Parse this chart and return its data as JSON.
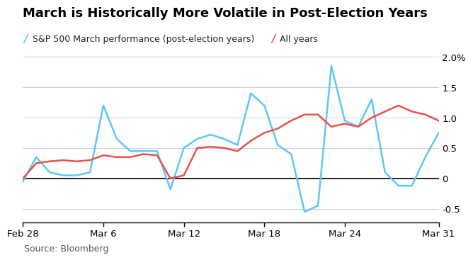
{
  "title": "March is Historically More Volatile in Post-Election Years",
  "legend_blue": "S&P 500 March performance (post-election years)",
  "legend_red": "All years",
  "source": "Source: Bloomberg",
  "x_labels": [
    "Feb 28",
    "Mar 6",
    "Mar 12",
    "Mar 18",
    "Mar 24",
    "Mar 31"
  ],
  "x_positions": [
    0,
    6,
    12,
    18,
    24,
    31
  ],
  "ylim": [
    -0.72,
    2.15
  ],
  "yticks": [
    -0.5,
    0,
    0.5,
    1.0,
    1.5,
    2.0
  ],
  "ytick_labels": [
    "-0.5",
    "0",
    "0.5",
    "1.0",
    "1.5",
    "2.0%"
  ],
  "blue_x": [
    0,
    1,
    2,
    3,
    4,
    5,
    6,
    7,
    8,
    9,
    10,
    11,
    12,
    13,
    14,
    15,
    16,
    17,
    18,
    19,
    20,
    21,
    22,
    23,
    24,
    25,
    26,
    27,
    28,
    29,
    30,
    31
  ],
  "blue_y": [
    -0.05,
    0.35,
    0.1,
    0.05,
    0.05,
    0.1,
    1.2,
    0.65,
    0.45,
    0.45,
    0.45,
    -0.18,
    0.5,
    0.65,
    0.72,
    0.65,
    0.55,
    1.4,
    1.2,
    0.55,
    0.4,
    -0.55,
    -0.45,
    1.85,
    0.95,
    0.85,
    1.3,
    0.1,
    -0.12,
    -0.12,
    0.35,
    0.75
  ],
  "red_x": [
    0,
    1,
    2,
    3,
    4,
    5,
    6,
    7,
    8,
    9,
    10,
    11,
    12,
    13,
    14,
    15,
    16,
    17,
    18,
    19,
    20,
    21,
    22,
    23,
    24,
    25,
    26,
    27,
    28,
    29,
    30,
    31
  ],
  "red_y": [
    0.0,
    0.25,
    0.28,
    0.3,
    0.28,
    0.3,
    0.38,
    0.35,
    0.35,
    0.4,
    0.38,
    0.0,
    0.05,
    0.5,
    0.52,
    0.5,
    0.45,
    0.62,
    0.75,
    0.82,
    0.95,
    1.05,
    1.05,
    0.85,
    0.9,
    0.85,
    1.0,
    1.1,
    1.2,
    1.1,
    1.05,
    0.95
  ],
  "blue_color": "#5bc8f5",
  "red_color": "#e8534a",
  "background_color": "#ffffff",
  "title_fontsize": 13,
  "label_fontsize": 9,
  "tick_fontsize": 9.5,
  "source_fontsize": 9
}
